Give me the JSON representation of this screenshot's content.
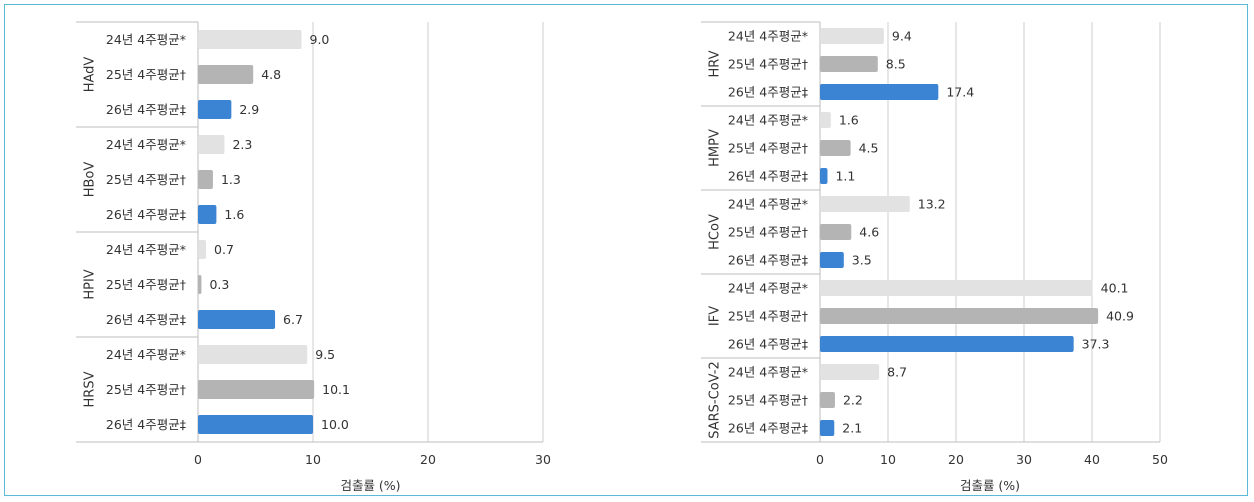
{
  "chart_data": [
    {
      "type": "bar",
      "orientation": "horizontal",
      "xlabel": "검출률 (%)",
      "xlim": [
        0,
        30
      ],
      "xticks": [
        0,
        10,
        20,
        30
      ],
      "grid": true,
      "groups": [
        {
          "name": "HAdV",
          "categories": [
            "24년 4주평균*",
            "25년 4주평균†",
            "26년 4주평균‡"
          ],
          "values": [
            9.0,
            4.8,
            2.9
          ],
          "labels": [
            "9.0",
            "4.8",
            "2.9"
          ]
        },
        {
          "name": "HBoV",
          "categories": [
            "24년 4주평균*",
            "25년 4주평균†",
            "26년 4주평균‡"
          ],
          "values": [
            2.3,
            1.3,
            1.6
          ],
          "labels": [
            "2.3",
            "1.3",
            "1.6"
          ]
        },
        {
          "name": "HPIV",
          "categories": [
            "24년 4주평균*",
            "25년 4주평균†",
            "26년 4주평균‡"
          ],
          "values": [
            0.7,
            0.3,
            6.7
          ],
          "labels": [
            "0.7",
            "0.3",
            "6.7"
          ]
        },
        {
          "name": "HRSV",
          "categories": [
            "24년 4주평균*",
            "25년 4주평균†",
            "26년 4주평균‡"
          ],
          "values": [
            9.5,
            10.1,
            10.0
          ],
          "labels": [
            "9.5",
            "10.1",
            "10.0"
          ]
        }
      ]
    },
    {
      "type": "bar",
      "orientation": "horizontal",
      "xlabel": "검출률 (%)",
      "xlim": [
        0,
        50
      ],
      "xticks": [
        0,
        10,
        20,
        30,
        40,
        50
      ],
      "grid": true,
      "groups": [
        {
          "name": "HRV",
          "categories": [
            "24년 4주평균*",
            "25년 4주평균†",
            "26년 4주평균‡"
          ],
          "values": [
            9.4,
            8.5,
            17.4
          ],
          "labels": [
            "9.4",
            "8.5",
            "17.4"
          ]
        },
        {
          "name": "HMPV",
          "categories": [
            "24년 4주평균*",
            "25년 4주평균†",
            "26년 4주평균‡"
          ],
          "values": [
            1.6,
            4.5,
            1.1
          ],
          "labels": [
            "1.6",
            "4.5",
            "1.1"
          ]
        },
        {
          "name": "HCoV",
          "categories": [
            "24년 4주평균*",
            "25년 4주평균†",
            "26년 4주평균‡"
          ],
          "values": [
            13.2,
            4.6,
            3.5
          ],
          "labels": [
            "13.2",
            "4.6",
            "3.5"
          ]
        },
        {
          "name": "IFV",
          "categories": [
            "24년 4주평균*",
            "25년 4주평균†",
            "26년 4주평균‡"
          ],
          "values": [
            40.1,
            40.9,
            37.3
          ],
          "labels": [
            "40.1",
            "40.9",
            "37.3"
          ]
        },
        {
          "name": "SARS-CoV-2",
          "categories": [
            "24년 4주평균*",
            "25년 4주평균†",
            "26년 4주평균‡"
          ],
          "values": [
            8.7,
            2.2,
            2.1
          ],
          "labels": [
            "8.7",
            "2.2",
            "2.1"
          ]
        }
      ]
    }
  ],
  "colors": {
    "series": [
      "#e2e2e2",
      "#b4b4b4",
      "#3b84d3"
    ],
    "grid": "#cfcfcf",
    "axis": "#bdbdbd",
    "text": "#333333",
    "border": "#5bb8d6"
  }
}
